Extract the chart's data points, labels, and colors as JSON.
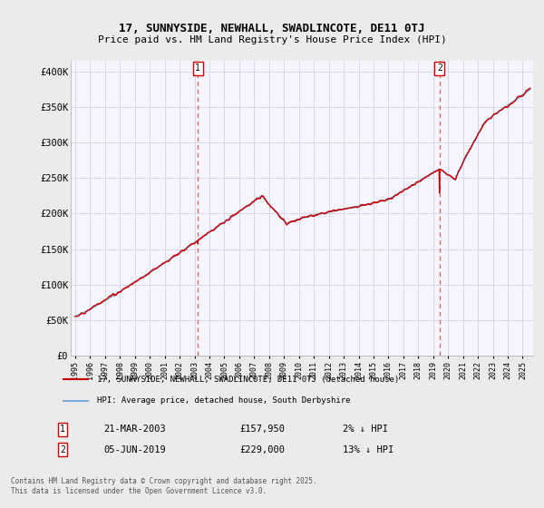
{
  "title": "17, SUNNYSIDE, NEWHALL, SWADLINCOTE, DE11 0TJ",
  "subtitle": "Price paid vs. HM Land Registry's House Price Index (HPI)",
  "ylabel_ticks": [
    "£0",
    "£50K",
    "£100K",
    "£150K",
    "£200K",
    "£250K",
    "£300K",
    "£350K",
    "£400K"
  ],
  "ytick_values": [
    0,
    50000,
    100000,
    150000,
    200000,
    250000,
    300000,
    350000,
    400000
  ],
  "ylim": [
    0,
    415000
  ],
  "hpi_color": "#7aabdb",
  "price_color": "#cc0000",
  "dashed_color": "#e06060",
  "sale1_year": 2003.22,
  "sale1_price": 157950,
  "sale2_year": 2019.43,
  "sale2_price": 229000,
  "ann1_date": "21-MAR-2003",
  "ann1_price": "£157,950",
  "ann1_pct": "2% ↓ HPI",
  "ann2_date": "05-JUN-2019",
  "ann2_price": "£229,000",
  "ann2_pct": "13% ↓ HPI",
  "legend_line1": "17, SUNNYSIDE, NEWHALL, SWADLINCOTE, DE11 0TJ (detached house)",
  "legend_line2": "HPI: Average price, detached house, South Derbyshire",
  "footnote": "Contains HM Land Registry data © Crown copyright and database right 2025.\nThis data is licensed under the Open Government Licence v3.0.",
  "bg_color": "#ebebeb",
  "plot_bg_color": "#f5f5ff",
  "grid_color": "#ccccdd",
  "xstart": 1994.7,
  "xend": 2025.7
}
